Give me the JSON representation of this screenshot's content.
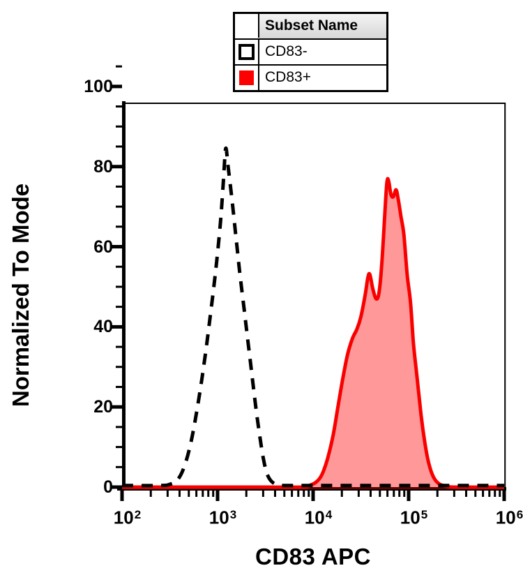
{
  "colors": {
    "black": "#000000",
    "curve_red": "#f90000",
    "fill_red": "rgba(255,0,0,0.40)",
    "legend_header_top": "#f4f4f4",
    "legend_header_bottom": "#d7d7d7"
  },
  "legend": {
    "header": "Subset Name",
    "rows": [
      {
        "label": "CD83-",
        "swatch": "open-black-outline"
      },
      {
        "label": "CD83+",
        "swatch": "red-filled"
      }
    ]
  },
  "axes": {
    "x": {
      "title": "CD83 APC",
      "tick_base": "10",
      "tick_exponents": [
        "2",
        "3",
        "4",
        "5",
        "6"
      ]
    },
    "y": {
      "title": "Normalized To Mode",
      "ticks": [
        0,
        20,
        40,
        60,
        80,
        100
      ]
    }
  },
  "chart_data": {
    "type": "line",
    "subtype": "flow-cytometry-histogram-overlay",
    "title": "",
    "xlabel": "CD83 APC",
    "ylabel": "Normalized To Mode",
    "x_scale": "log10",
    "xlim_log10": [
      2,
      6
    ],
    "ylim": [
      0,
      100
    ],
    "x_major_ticks": [
      "1e2",
      "1e3",
      "1e4",
      "1e5",
      "1e6"
    ],
    "y_major_ticks": [
      0,
      20,
      40,
      60,
      80,
      100
    ],
    "y_minor_step": 5,
    "grid": false,
    "legend_position": "top-center",
    "series": [
      {
        "name": "CD83-",
        "style": "dashed",
        "color": "#000000",
        "fill": "none",
        "peak": {
          "x": 1200,
          "y": 84
        },
        "points_log10x_y": [
          [
            2.0,
            0.4
          ],
          [
            2.4,
            0.4
          ],
          [
            2.5,
            0.7
          ],
          [
            2.58,
            1.8
          ],
          [
            2.65,
            5
          ],
          [
            2.72,
            11
          ],
          [
            2.79,
            20
          ],
          [
            2.86,
            31
          ],
          [
            2.92,
            42
          ],
          [
            2.98,
            54
          ],
          [
            3.03,
            66
          ],
          [
            3.06,
            76
          ],
          [
            3.085,
            84.5
          ],
          [
            3.11,
            80
          ],
          [
            3.15,
            72
          ],
          [
            3.19,
            63
          ],
          [
            3.23,
            54
          ],
          [
            3.28,
            44
          ],
          [
            3.32,
            36
          ],
          [
            3.36,
            28
          ],
          [
            3.4,
            20
          ],
          [
            3.44,
            13
          ],
          [
            3.48,
            7
          ],
          [
            3.52,
            3.2
          ],
          [
            3.57,
            1.3
          ],
          [
            3.64,
            0.5
          ],
          [
            3.75,
            0.4
          ],
          [
            4.5,
            0.4
          ],
          [
            5.3,
            0.4
          ],
          [
            6.0,
            0.4
          ]
        ]
      },
      {
        "name": "CD83+",
        "style": "solid",
        "color": "#f90000",
        "fill": "rgba(255,0,0,0.40)",
        "peak": {
          "x": 60000,
          "y": 77
        },
        "shoulder": {
          "x": 39000,
          "y": 53
        },
        "points_log10x_y": [
          [
            2.0,
            0
          ],
          [
            3.3,
            0
          ],
          [
            3.88,
            0
          ],
          [
            3.96,
            0.4
          ],
          [
            4.03,
            1.2
          ],
          [
            4.09,
            3
          ],
          [
            4.15,
            7
          ],
          [
            4.21,
            13
          ],
          [
            4.26,
            20
          ],
          [
            4.31,
            27
          ],
          [
            4.36,
            33
          ],
          [
            4.41,
            37
          ],
          [
            4.46,
            39.5
          ],
          [
            4.5,
            42.5
          ],
          [
            4.545,
            48
          ],
          [
            4.575,
            52.5
          ],
          [
            4.595,
            53
          ],
          [
            4.625,
            49.5
          ],
          [
            4.66,
            47
          ],
          [
            4.69,
            48.5
          ],
          [
            4.72,
            56
          ],
          [
            4.75,
            68
          ],
          [
            4.772,
            76
          ],
          [
            4.79,
            76.5
          ],
          [
            4.815,
            73
          ],
          [
            4.84,
            72.5
          ],
          [
            4.868,
            74.2
          ],
          [
            4.89,
            72
          ],
          [
            4.92,
            67.5
          ],
          [
            4.95,
            63
          ],
          [
            4.985,
            53
          ],
          [
            5.02,
            46
          ],
          [
            5.05,
            36
          ],
          [
            5.09,
            27
          ],
          [
            5.13,
            18
          ],
          [
            5.17,
            11
          ],
          [
            5.21,
            6
          ],
          [
            5.26,
            2.5
          ],
          [
            5.32,
            0.8
          ],
          [
            5.4,
            0.2
          ],
          [
            5.5,
            0
          ],
          [
            6.0,
            0
          ]
        ]
      }
    ]
  }
}
